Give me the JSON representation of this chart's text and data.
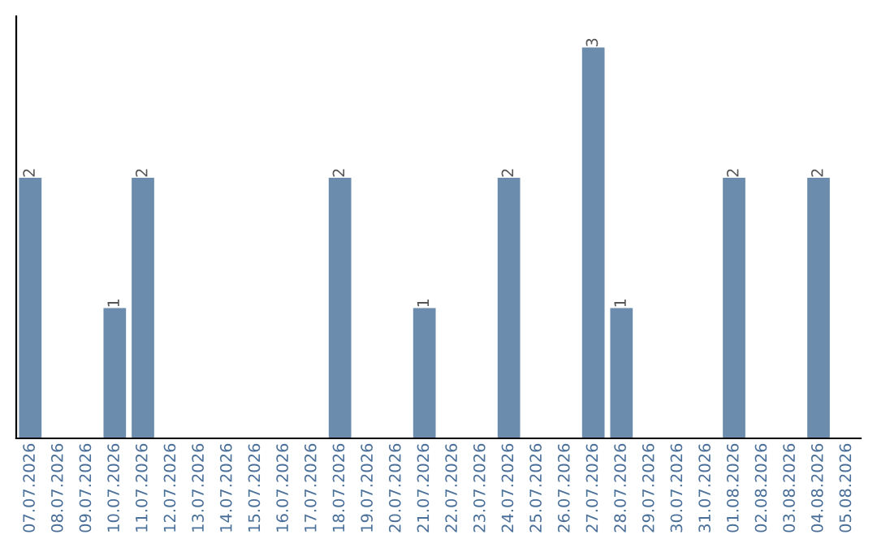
{
  "chart_data": {
    "type": "bar",
    "categories": [
      "07.07.2026",
      "08.07.2026",
      "09.07.2026",
      "10.07.2026",
      "11.07.2026",
      "12.07.2026",
      "13.07.2026",
      "14.07.2026",
      "15.07.2026",
      "16.07.2026",
      "17.07.2026",
      "18.07.2026",
      "19.07.2026",
      "20.07.2026",
      "21.07.2026",
      "22.07.2026",
      "23.07.2026",
      "24.07.2026",
      "25.07.2026",
      "26.07.2026",
      "27.07.2026",
      "28.07.2026",
      "29.07.2026",
      "30.07.2026",
      "31.07.2026",
      "01.08.2026",
      "02.08.2026",
      "03.08.2026",
      "04.08.2026",
      "05.08.2026"
    ],
    "values": [
      2,
      0,
      0,
      1,
      2,
      0,
      0,
      0,
      0,
      0,
      0,
      2,
      0,
      0,
      1,
      0,
      0,
      2,
      0,
      0,
      3,
      1,
      0,
      0,
      0,
      2,
      0,
      0,
      2,
      0
    ],
    "value_labels": [
      "2",
      null,
      null,
      "1",
      "2",
      null,
      null,
      null,
      null,
      null,
      null,
      "2",
      null,
      null,
      "1",
      null,
      null,
      "2",
      null,
      null,
      "3",
      "1",
      null,
      null,
      null,
      "2",
      null,
      null,
      "2",
      null
    ],
    "color": "#6b8cac",
    "grid": false,
    "legend": false
  }
}
